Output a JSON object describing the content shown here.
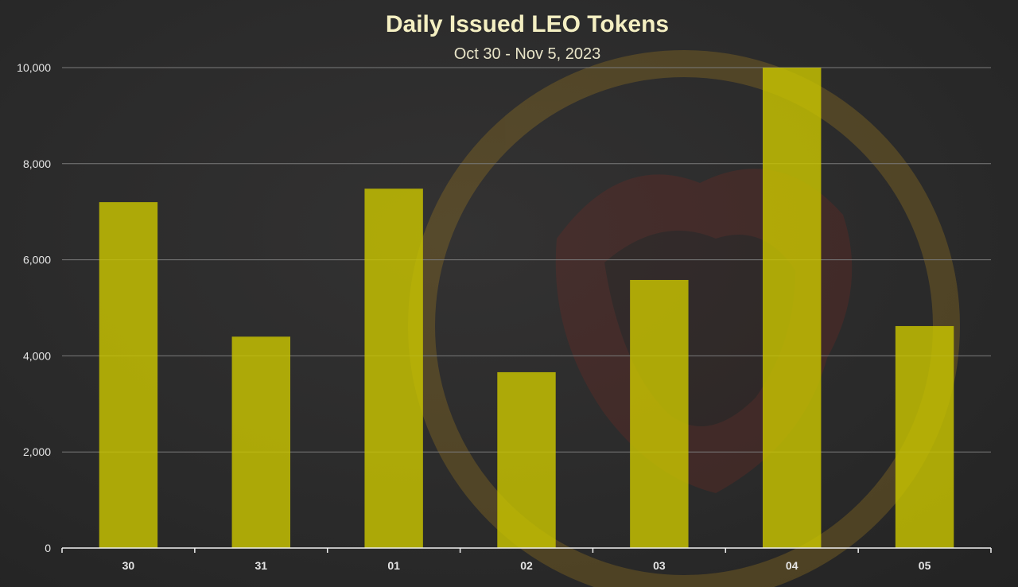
{
  "chart_data": {
    "type": "bar",
    "title": "Daily Issued LEO Tokens",
    "subtitle": "Oct 30 - Nov 5, 2023",
    "xlabel": "",
    "ylabel": "",
    "categories": [
      "30",
      "31",
      "01",
      "02",
      "03",
      "04",
      "05"
    ],
    "values": [
      7200,
      4400,
      7480,
      3660,
      5580,
      10000,
      4620
    ],
    "ylim": [
      0,
      10000
    ],
    "yticks": [
      0,
      2000,
      4000,
      6000,
      8000,
      10000
    ],
    "ytick_labels": [
      "0",
      "2,000",
      "4,000",
      "6,000",
      "8,000",
      "10,000"
    ],
    "grid": true,
    "legend": "none",
    "bar_color": "#c9c400"
  }
}
